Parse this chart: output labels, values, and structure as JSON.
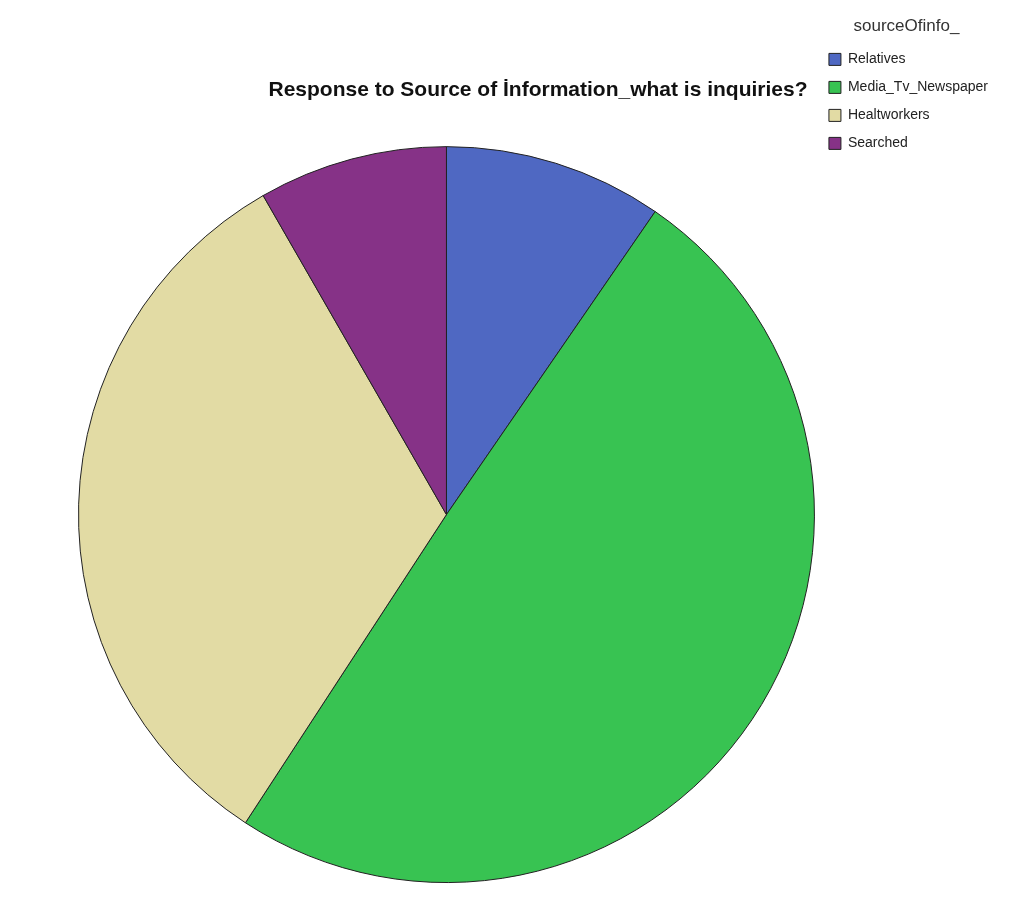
{
  "chart_data": {
    "type": "pie",
    "title": "Response to Source of İnformation_what is inquiries?",
    "legend_title": "sourceOfinfo_",
    "categories": [
      "Relatives",
      "Media_Tv_Newspaper",
      "Healtworkers",
      "Searched"
    ],
    "values": [
      9.6,
      49.6,
      32.5,
      8.3
    ],
    "colors": [
      "#4f68c2",
      "#38c352",
      "#e2dba4",
      "#863287"
    ],
    "legend": "top right"
  }
}
